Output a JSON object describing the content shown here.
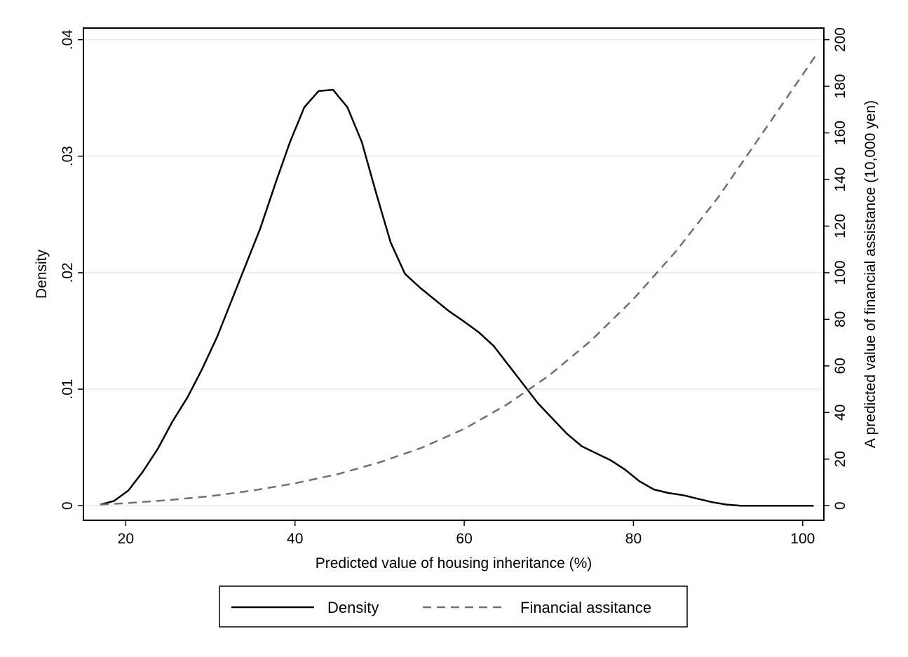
{
  "chart_data": {
    "type": "line",
    "title": "",
    "xlabel": "Predicted value of housing inheritance (%)",
    "ylabel": "Density",
    "y2label": "A predicted value of financial assistance (10,000 yen)",
    "xlim": [
      15,
      102.5
    ],
    "ylim": [
      -0.00125,
      0.041
    ],
    "y2lim": [
      -6.25,
      205
    ],
    "xticks": [
      20,
      40,
      60,
      80,
      100
    ],
    "xtick_labels": [
      "20",
      "40",
      "60",
      "80",
      "100"
    ],
    "yticks": [
      0,
      0.01,
      0.02,
      0.03,
      0.04
    ],
    "ytick_labels": [
      "0",
      ".01",
      ".02",
      ".03",
      ".04"
    ],
    "y2ticks": [
      0,
      20,
      40,
      60,
      80,
      100,
      120,
      140,
      160,
      180,
      200
    ],
    "y2tick_labels": [
      "0",
      "20",
      "40",
      "60",
      "80",
      "100",
      "120",
      "140",
      "160",
      "180",
      "200"
    ],
    "grid": true,
    "legend_position": "bottom",
    "series": [
      {
        "name": "Density",
        "axis": "left",
        "style": "solid",
        "color": "#000000",
        "x": [
          17,
          18.6,
          20.3,
          22,
          23.8,
          25.5,
          27.3,
          29,
          30.8,
          32.5,
          34.2,
          35.9,
          37.7,
          39.4,
          41.1,
          42.8,
          44.5,
          46.2,
          47.9,
          49.6,
          51.3,
          53,
          54.8,
          56.5,
          58.2,
          60,
          61.7,
          63.5,
          65.2,
          67,
          68.7,
          70.4,
          72.1,
          73.9,
          75.6,
          77.3,
          79,
          80.7,
          82.4,
          84.1,
          85.9,
          87.6,
          89.3,
          91,
          92.7,
          94.4,
          96.2,
          97.9,
          99.6,
          101.3
        ],
        "y": [
          0.0001,
          0.0004,
          0.0013,
          0.0029,
          0.0049,
          0.0072,
          0.0093,
          0.0117,
          0.0145,
          0.0176,
          0.0207,
          0.0238,
          0.0277,
          0.0312,
          0.0342,
          0.0356,
          0.0357,
          0.0342,
          0.0312,
          0.0268,
          0.0226,
          0.0199,
          0.0187,
          0.0177,
          0.0167,
          0.0158,
          0.0149,
          0.0137,
          0.0121,
          0.0104,
          0.0088,
          0.0075,
          0.0062,
          0.0051,
          0.0045,
          0.0039,
          0.0031,
          0.0021,
          0.0014,
          0.0011,
          0.0009,
          0.0006,
          0.0003,
          0.0001,
          0.0,
          0.0,
          0.0,
          0.0,
          0.0,
          0.0
        ]
      },
      {
        "name": "Financial assitance",
        "axis": "right",
        "style": "dashed",
        "color": "#707070",
        "x": [
          17,
          20,
          25,
          30,
          35,
          40,
          45,
          50,
          55,
          60,
          65,
          70,
          75,
          80,
          85,
          90,
          95,
          101.5
        ],
        "y": [
          0.5,
          1.1,
          2.4,
          4.1,
          6.5,
          9.6,
          13.5,
          18.6,
          24.9,
          33.0,
          43.3,
          55.8,
          70.9,
          88.7,
          109.1,
          132.3,
          158.6,
          193.0
        ]
      }
    ]
  }
}
